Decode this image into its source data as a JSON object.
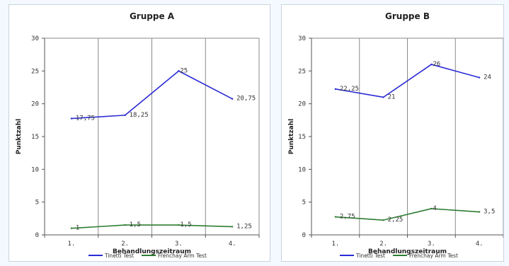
{
  "chart_data": [
    {
      "type": "line",
      "title": "Gruppe A",
      "xlabel": "Behandlungszeitraum",
      "ylabel": "Punktzahl",
      "categories": [
        "1.",
        "2.",
        "3.",
        "4."
      ],
      "ylim": [
        0,
        30
      ],
      "yticks": [
        "0",
        "5",
        "10",
        "15",
        "20",
        "25",
        "30"
      ],
      "grid": "vertical",
      "legend_position": "bottom",
      "series": [
        {
          "name": "Tinetti Test",
          "color": "#2b2bd6",
          "values": [
            17.75,
            18.25,
            25,
            20.75
          ],
          "labels": [
            "17,75",
            "18,25",
            "25",
            "20,75"
          ]
        },
        {
          "name": "Frenchay Arm Test",
          "color": "#2e7d32",
          "values": [
            1,
            1.5,
            1.5,
            1.25
          ],
          "labels": [
            "1",
            "1,5",
            "1,5",
            "1,25"
          ]
        }
      ]
    },
    {
      "type": "line",
      "title": "Gruppe B",
      "xlabel": "Behandlungszeitraum",
      "ylabel": "Punktzahl",
      "categories": [
        "1.",
        "2.",
        "3.",
        "4."
      ],
      "ylim": [
        0,
        30
      ],
      "yticks": [
        "0",
        "5",
        "10",
        "15",
        "20",
        "25",
        "30"
      ],
      "grid": "vertical",
      "legend_position": "bottom",
      "series": [
        {
          "name": "Tinetti Test",
          "color": "#2b2bd6",
          "values": [
            22.25,
            21,
            26,
            24
          ],
          "labels": [
            "22,25",
            "21",
            "26",
            "24"
          ]
        },
        {
          "name": "Frenchay Arm Test",
          "color": "#2e7d32",
          "values": [
            2.75,
            2.25,
            4,
            3.5
          ],
          "labels": [
            "2,75",
            "2,25",
            "4",
            "3,5"
          ]
        }
      ]
    }
  ]
}
